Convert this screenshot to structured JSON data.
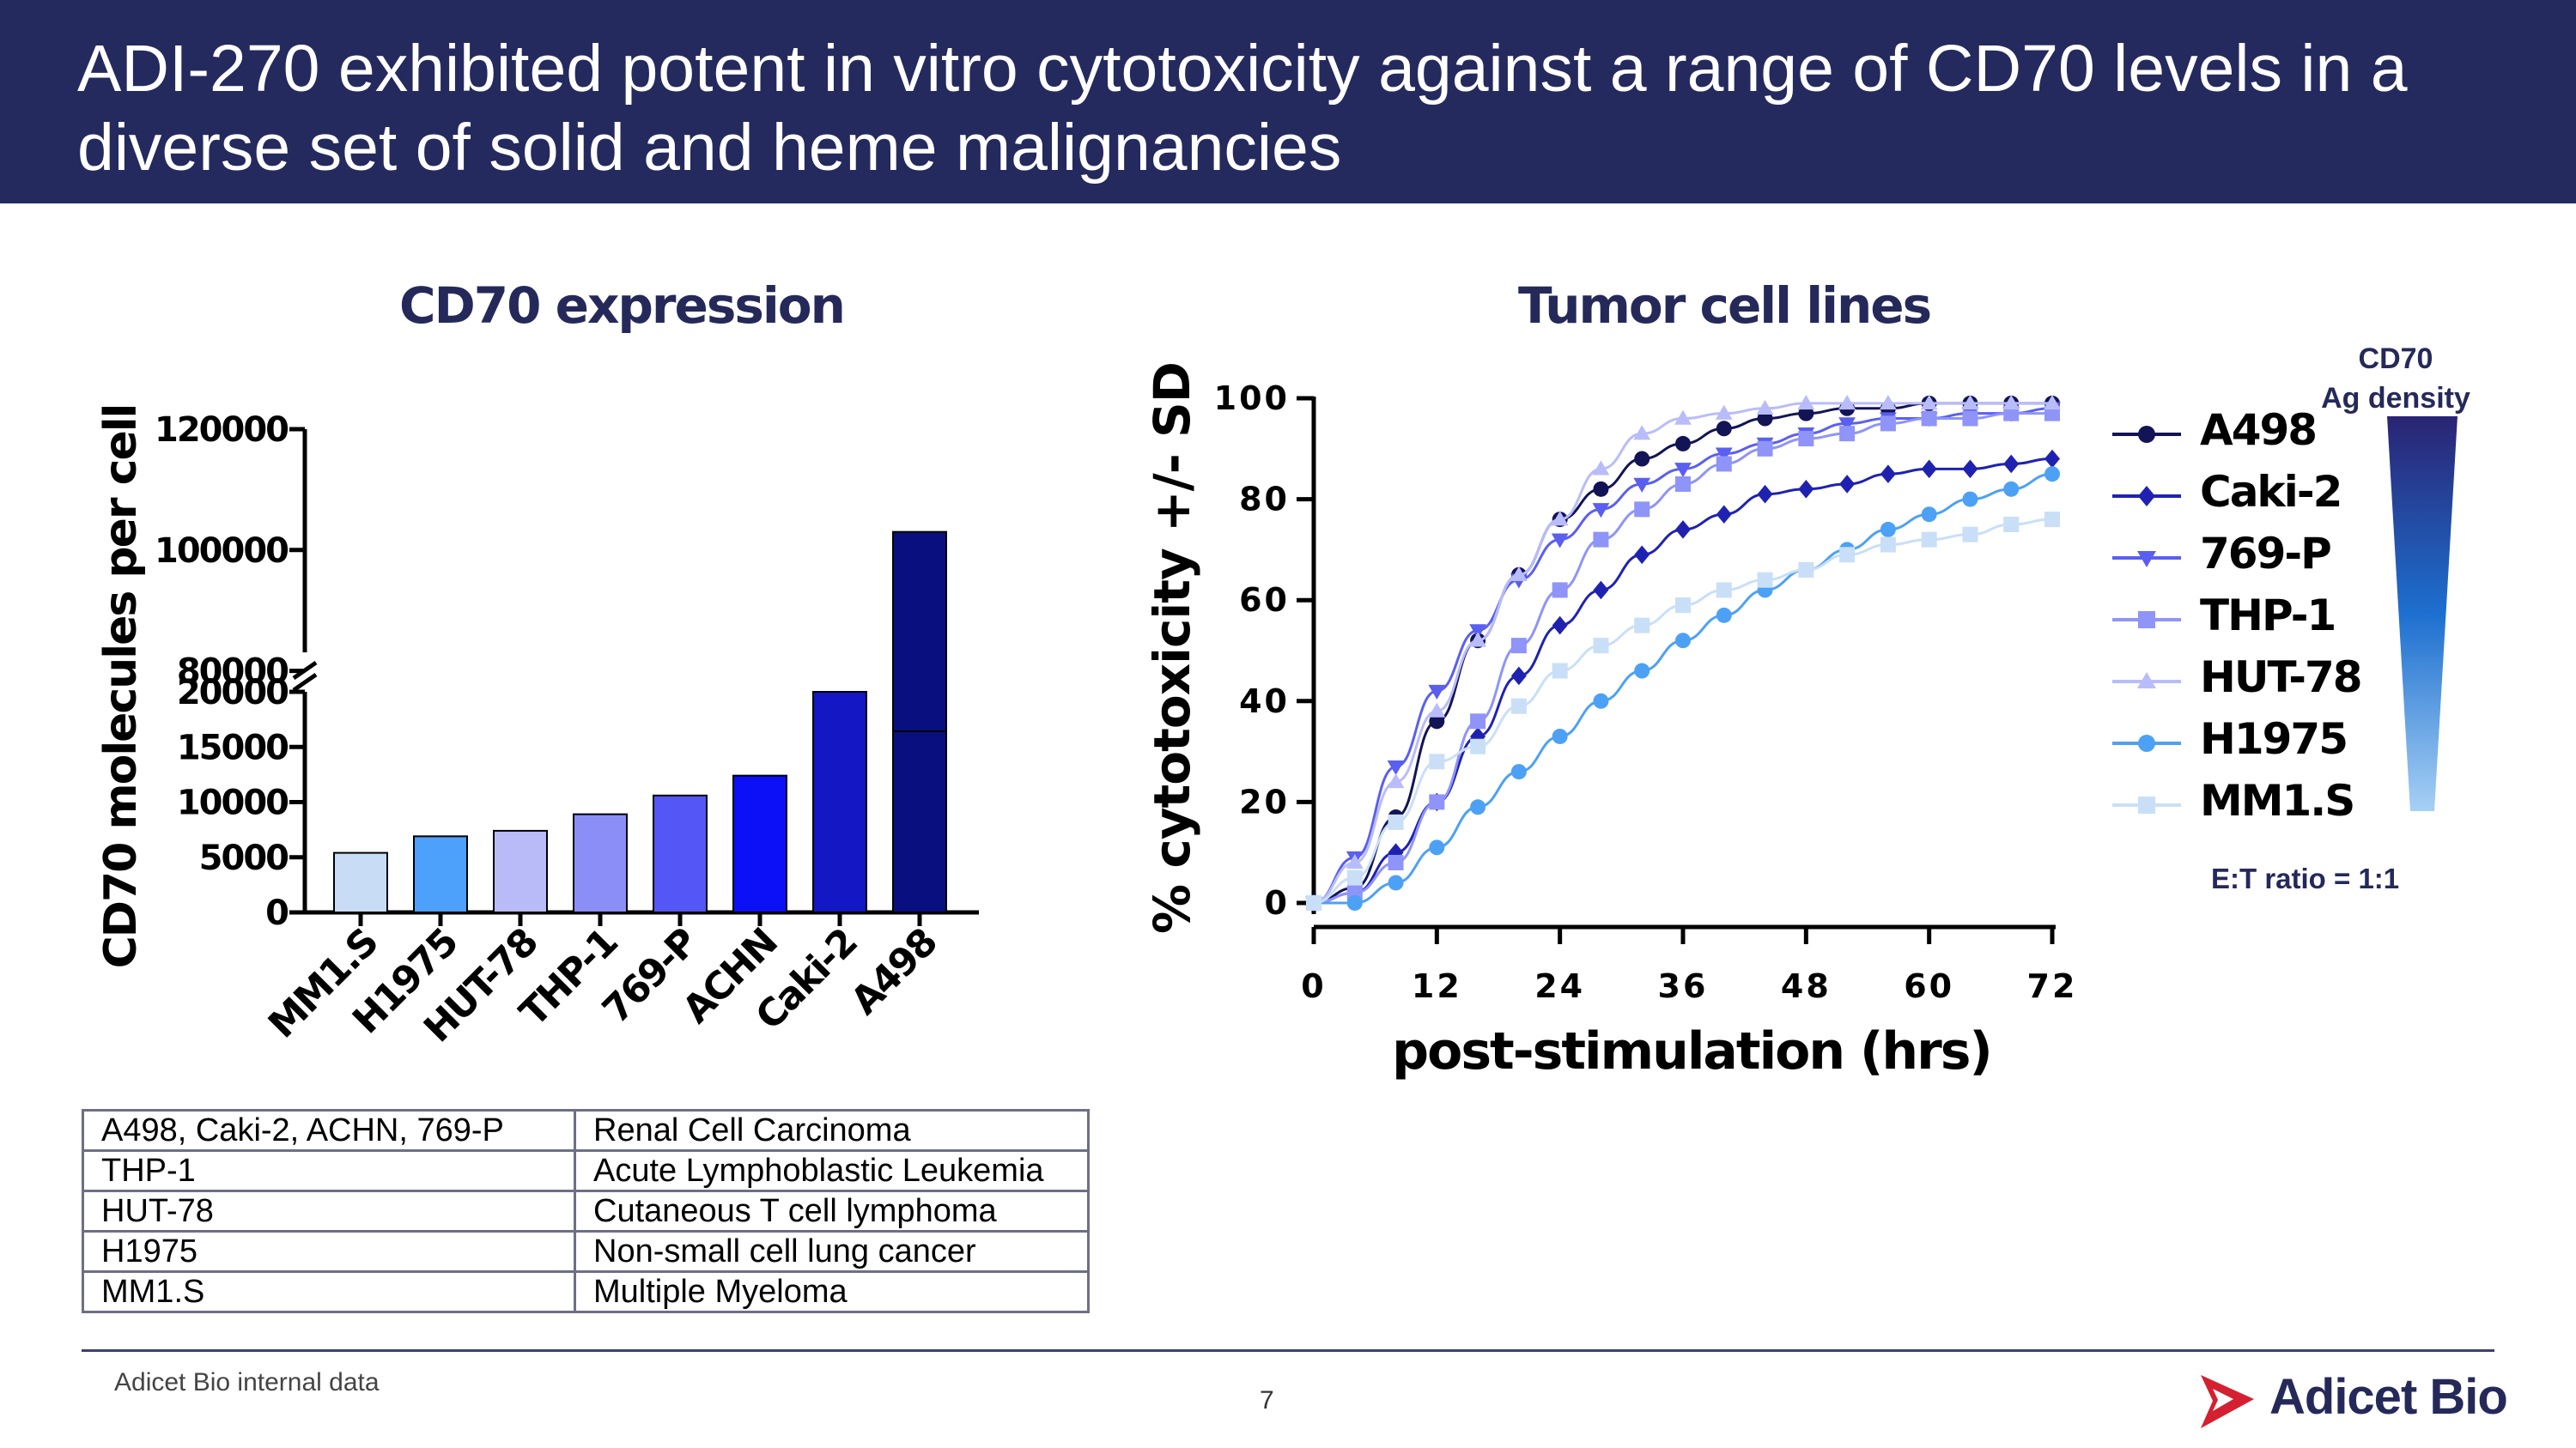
{
  "header": {
    "title": "ADI-270 exhibited potent in vitro cytotoxicity against a range of CD70 levels in a diverse set of solid and heme malignancies"
  },
  "chart_data": [
    {
      "type": "bar",
      "title": "CD70 expression",
      "ylabel": "CD70 molecules per cell",
      "xlabel": "",
      "categories": [
        "MM1.S",
        "H1975",
        "HUT-78",
        "THP-1",
        "769-P",
        "ACHN",
        "Caki-2",
        "A498"
      ],
      "values": [
        5400,
        6900,
        7400,
        8900,
        10600,
        12400,
        20000,
        103000
      ],
      "colors": [
        "#c8dcf6",
        "#4da1fa",
        "#b9bbf9",
        "#8a8ef6",
        "#5456f5",
        "#0c10f7",
        "#1417c4",
        "#0a0f80"
      ],
      "axis_breaks": "broken y-axis between 20000 and 80000",
      "ylim_lower": [
        0,
        20000
      ],
      "ylim_upper": [
        70000,
        120000
      ],
      "y_ticks_lower": [
        "0",
        "5000",
        "10000",
        "15000",
        "20000"
      ],
      "y_ticks_upper": [
        "80000",
        "100000",
        "120000"
      ],
      "grid": false
    },
    {
      "type": "line",
      "title": "Tumor cell lines",
      "xlabel": "post-stimulation (hrs)",
      "ylabel": "% cytotoxicity +/- SD",
      "xlim": [
        0,
        72
      ],
      "ylim": [
        0,
        100
      ],
      "x_ticks": [
        "0",
        "12",
        "24",
        "36",
        "48",
        "60",
        "72"
      ],
      "y_ticks": [
        "0",
        "20",
        "40",
        "60",
        "80",
        "100"
      ],
      "x": [
        0,
        4,
        8,
        12,
        16,
        20,
        24,
        28,
        32,
        36,
        40,
        44,
        48,
        52,
        56,
        60,
        64,
        68,
        72
      ],
      "legend_position": "right",
      "grid": false,
      "series": [
        {
          "name": "A498",
          "marker": "circle",
          "color": "#121456",
          "values": [
            0,
            3,
            17,
            36,
            52,
            65,
            76,
            82,
            88,
            91,
            94,
            96,
            97,
            98,
            98,
            99,
            99,
            99,
            99
          ]
        },
        {
          "name": "Caki-2",
          "marker": "diamond",
          "color": "#1f22b0",
          "values": [
            0,
            2,
            10,
            20,
            33,
            45,
            55,
            62,
            69,
            74,
            77,
            81,
            82,
            83,
            85,
            86,
            86,
            87,
            88
          ]
        },
        {
          "name": "769-P",
          "marker": "triangle-down",
          "color": "#5a5ff0",
          "values": [
            0,
            9,
            27,
            42,
            54,
            64,
            72,
            78,
            83,
            86,
            89,
            91,
            93,
            95,
            96,
            96,
            97,
            97,
            98
          ]
        },
        {
          "name": "THP-1",
          "marker": "square",
          "color": "#8f94f8",
          "values": [
            0,
            2,
            8,
            20,
            36,
            51,
            62,
            72,
            78,
            83,
            87,
            90,
            92,
            93,
            95,
            96,
            96,
            97,
            97
          ]
        },
        {
          "name": "HUT-78",
          "marker": "triangle-up",
          "color": "#b9bcfa",
          "values": [
            0,
            8,
            24,
            38,
            52,
            65,
            76,
            86,
            93,
            96,
            97,
            98,
            99,
            99,
            99,
            99,
            99,
            99,
            99
          ]
        },
        {
          "name": "H1975",
          "marker": "circle",
          "color": "#4da1f5",
          "values": [
            0,
            0,
            4,
            11,
            19,
            26,
            33,
            40,
            46,
            52,
            57,
            62,
            66,
            70,
            74,
            77,
            80,
            82,
            85
          ]
        },
        {
          "name": "MM1.S",
          "marker": "square",
          "color": "#c9dff7",
          "values": [
            0,
            5,
            16,
            28,
            31,
            39,
            46,
            51,
            55,
            59,
            62,
            64,
            66,
            69,
            71,
            72,
            73,
            75,
            76
          ]
        }
      ]
    }
  ],
  "legend": {
    "gradient_label_line1": "CD70",
    "gradient_label_line2": "Ag density",
    "gradient_top_color": "#2a2473",
    "gradient_bottom_color": "#a6d0f5",
    "et_ratio": "E:T ratio = 1:1"
  },
  "table": {
    "rows": [
      {
        "lines": "A498, Caki-2, ACHN, 769-P",
        "type": "Renal Cell Carcinoma"
      },
      {
        "lines": "THP-1",
        "type": "Acute Lymphoblastic Leukemia"
      },
      {
        "lines": "HUT-78",
        "type": "Cutaneous T cell lymphoma"
      },
      {
        "lines": "H1975",
        "type": "Non-small cell lung cancer"
      },
      {
        "lines": "MM1.S",
        "type": "Multiple Myeloma"
      }
    ]
  },
  "footer": {
    "source": "Adicet Bio internal data",
    "page_number": "7",
    "logo_text": "Adicet Bio",
    "brand_color": "#d42030",
    "navy": "#25295a"
  }
}
